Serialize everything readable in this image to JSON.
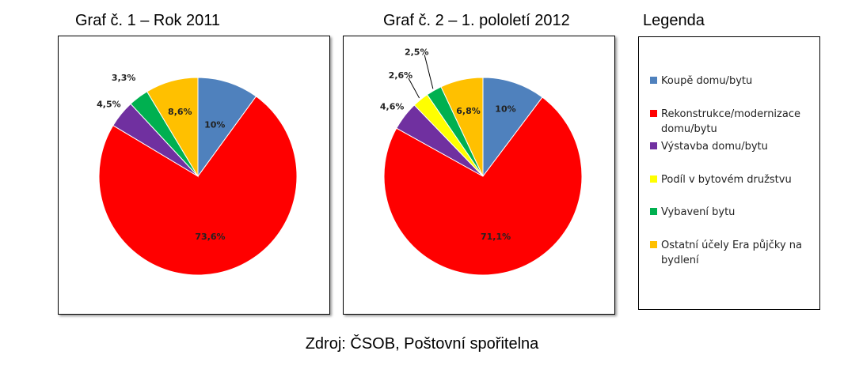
{
  "chart_data": [
    {
      "type": "pie",
      "title": "Graf č. 1 – Rok 2011",
      "categories": [
        "Koupě domu/bytu",
        "Rekonstrukce/modernizace domu/bytu",
        "Výstavba domu/bytu",
        "Vybavení bytu",
        "Ostatní účely Era půjčky na bydlení"
      ],
      "values": [
        10,
        73.6,
        4.5,
        3.3,
        8.6
      ],
      "labels": [
        "10%",
        "73,6%",
        "4,5%",
        "3,3%",
        "8,6%"
      ],
      "colors": [
        "#4f81bd",
        "#ff0000",
        "#7030a0",
        "#00b050",
        "#ffc000"
      ]
    },
    {
      "type": "pie",
      "title": "Graf č. 2 – 1. pololetí 2012",
      "categories": [
        "Koupě domu/bytu",
        "Rekonstrukce/modernizace domu/bytu",
        "Výstavba domu/bytu",
        "Podíl v bytovém družstvu",
        "Vybavení bytu",
        "Ostatní účely Era půjčky na bydlení"
      ],
      "values": [
        10,
        71.1,
        4.6,
        2.6,
        2.5,
        6.8
      ],
      "labels": [
        "10%",
        "71,1%",
        "4,6%",
        "2,6%",
        "2,5%",
        "6,8%"
      ],
      "colors": [
        "#4f81bd",
        "#ff0000",
        "#7030a0",
        "#ffff00",
        "#00b050",
        "#ffc000"
      ]
    }
  ],
  "legend": {
    "title": "Legenda",
    "items": [
      {
        "label": "Koupě domu/bytu",
        "color": "#4f81bd"
      },
      {
        "label": "Rekonstrukce/modernizace domu/bytu",
        "color": "#ff0000"
      },
      {
        "label": "Výstavba domu/bytu",
        "color": "#7030a0"
      },
      {
        "label": "Podíl v bytovém družstvu",
        "color": "#ffff00"
      },
      {
        "label": "Vybavení bytu",
        "color": "#00b050"
      },
      {
        "label": "Ostatní účely Era půjčky na bydlení",
        "color": "#ffc000"
      }
    ]
  },
  "source": "Zdroj: ČSOB, Poštovní spořitelna"
}
